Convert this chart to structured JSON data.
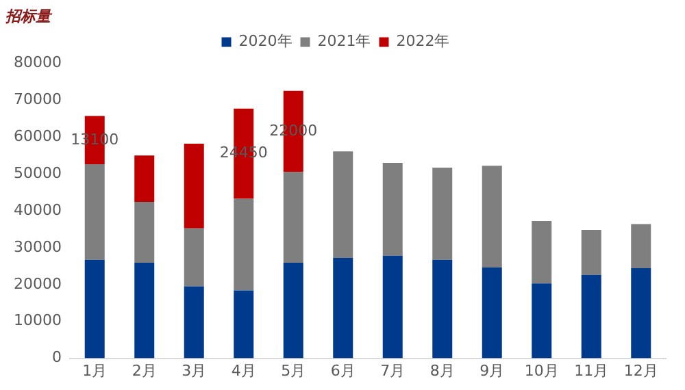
{
  "chart_data": {
    "type": "bar",
    "title": "招标量",
    "stacked": true,
    "legend": "top",
    "categories": [
      "1月",
      "2月",
      "3月",
      "4月",
      "5月",
      "6月",
      "7月",
      "8月",
      "9月",
      "10月",
      "11月",
      "12月"
    ],
    "series": [
      {
        "name": "2020年",
        "color": "#003a8c",
        "values": [
          26700,
          25900,
          19500,
          18400,
          25900,
          27200,
          27800,
          26700,
          24600,
          20300,
          22600,
          24400
        ]
      },
      {
        "name": "2021年",
        "color": "#7f7f7f",
        "values": [
          25900,
          16500,
          15700,
          24850,
          24600,
          28900,
          25200,
          25000,
          27600,
          16900,
          12200,
          12000
        ]
      },
      {
        "name": "2022年",
        "color": "#c00000",
        "values": [
          13100,
          12600,
          23000,
          24450,
          22000,
          null,
          null,
          null,
          null,
          null,
          null,
          null
        ],
        "value_labels": [
          "13100",
          null,
          null,
          "24450",
          "22000",
          null,
          null,
          null,
          null,
          null,
          null,
          null
        ]
      }
    ],
    "ylim": [
      0,
      80000
    ],
    "yticks": [
      0,
      10000,
      20000,
      30000,
      40000,
      50000,
      60000,
      70000,
      80000
    ]
  }
}
